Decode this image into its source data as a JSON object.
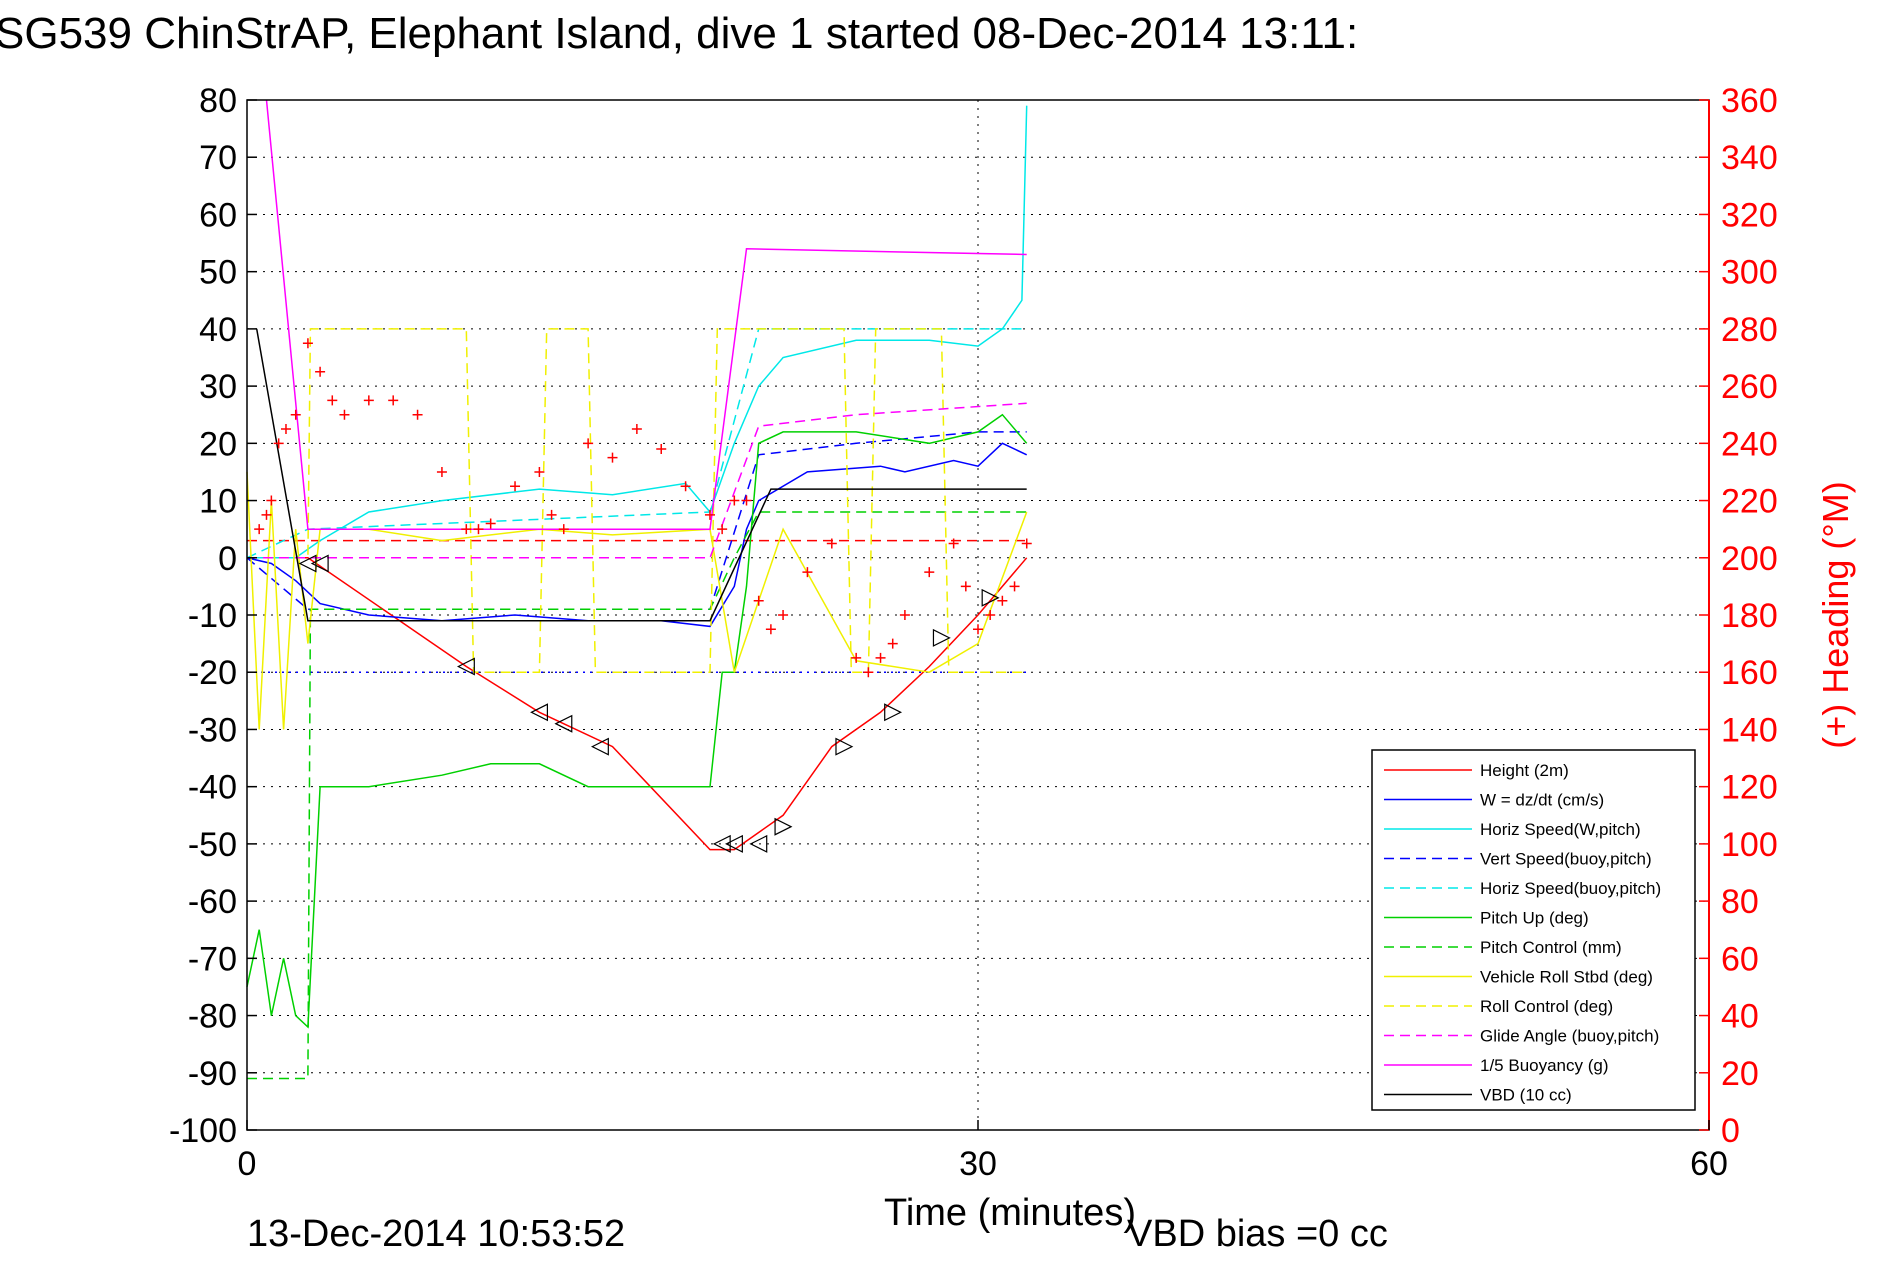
{
  "chart_data": {
    "type": "line",
    "title": "SG539 ChinStrAP, Elephant Island, dive 1 started 08-Dec-2014 13:11:",
    "xlabel": "Time (minutes)",
    "ylabel_right": "(+) Heading (°M)",
    "xlim": [
      0,
      60
    ],
    "ylim": [
      -100,
      80
    ],
    "ylim_right": [
      0,
      360
    ],
    "x_ticks": [
      "0",
      "30",
      "60"
    ],
    "y_ticks": [
      "80",
      "70",
      "60",
      "50",
      "40",
      "30",
      "20",
      "10",
      "0",
      "-10",
      "-20",
      "-30",
      "-40",
      "-50",
      "-60",
      "-70",
      "-80",
      "-90",
      "-100"
    ],
    "y_right_ticks": [
      "360",
      "340",
      "320",
      "300",
      "280",
      "260",
      "240",
      "220",
      "200",
      "180",
      "160",
      "140",
      "120",
      "100",
      "80",
      "60",
      "40",
      "20",
      "0"
    ],
    "grid": true,
    "legend_position": "bottom-right",
    "footer_date": "13-Dec-2014 10:53:52",
    "footer_note": "VBD bias =0 cc",
    "colors": {
      "red": "#ff0000",
      "blue": "#0000ff",
      "cyan": "#00e8e8",
      "green": "#00d000",
      "yellow": "#f0f000",
      "magenta": "#ff00ff",
      "black": "#000000"
    },
    "series": [
      {
        "name": "Height (2m)",
        "color": "#ff0000",
        "dash": "solid",
        "x": [
          0,
          2.5,
          9,
          12,
          15,
          19,
          20,
          22,
          24,
          26,
          28,
          30,
          32
        ],
        "y": [
          0,
          0,
          -19,
          -27,
          -33,
          -51,
          -51,
          -45,
          -33,
          -27,
          -19,
          -10,
          0
        ]
      },
      {
        "name": "W = dz/dt (cm/s)",
        "color": "#0000ff",
        "dash": "solid",
        "x": [
          0,
          1,
          2,
          3,
          5,
          8,
          11,
          14,
          17,
          19,
          20,
          20.5,
          21,
          23,
          26,
          27,
          29,
          30,
          31,
          32
        ],
        "y": [
          0,
          -1,
          -4,
          -8,
          -10,
          -11,
          -10,
          -11,
          -11,
          -12,
          -5,
          5,
          10,
          15,
          16,
          15,
          17,
          16,
          20,
          18
        ]
      },
      {
        "name": "Horiz Speed(W,pitch)",
        "color": "#00e8e8",
        "dash": "solid",
        "x": [
          0,
          2,
          3,
          5,
          8,
          12,
          15,
          18,
          19,
          20,
          21,
          22,
          25,
          28,
          30,
          31,
          31.8,
          32
        ],
        "y": [
          0,
          0,
          3,
          8,
          10,
          12,
          11,
          13,
          8,
          20,
          30,
          35,
          38,
          38,
          37,
          40,
          45,
          79
        ]
      },
      {
        "name": "Vert Speed(buoy,pitch)",
        "color": "#0000ff",
        "dash": "dashed",
        "x": [
          0,
          2.5,
          19,
          21,
          25,
          30,
          32
        ],
        "y": [
          0,
          -9,
          -9,
          18,
          20,
          22,
          22
        ]
      },
      {
        "name": "Horiz Speed(buoy,pitch)",
        "color": "#00e8e8",
        "dash": "dashed",
        "x": [
          0,
          2.5,
          19,
          21,
          25,
          30,
          32
        ],
        "y": [
          0,
          5,
          8,
          40,
          40,
          40,
          40
        ]
      },
      {
        "name": "Pitch Up (deg)",
        "color": "#00d000",
        "dash": "solid",
        "x": [
          0,
          0.5,
          1,
          1.5,
          2,
          2.5,
          3,
          5,
          8,
          10,
          12,
          14,
          16,
          19,
          19.5,
          20,
          20.5,
          21,
          22,
          25,
          28,
          30,
          31,
          32
        ],
        "y": [
          -75,
          -65,
          -80,
          -70,
          -80,
          -82,
          -40,
          -40,
          -38,
          -36,
          -36,
          -40,
          -40,
          -40,
          -20,
          -20,
          -5,
          20,
          22,
          22,
          20,
          22,
          25,
          20
        ]
      },
      {
        "name": "Pitch Control (mm)",
        "color": "#00d000",
        "dash": "dashed",
        "x": [
          0,
          2.5,
          2.6,
          19,
          20,
          21,
          32
        ],
        "y": [
          -91,
          -91,
          -9,
          -9,
          0,
          8,
          8
        ]
      },
      {
        "name": "Vehicle Roll Stbd (deg)",
        "color": "#f0f000",
        "dash": "solid",
        "x": [
          0,
          0.5,
          1,
          1.5,
          2,
          2.5,
          3,
          5,
          8,
          12,
          15,
          19,
          20,
          22,
          25,
          28,
          30,
          32
        ],
        "y": [
          15,
          -30,
          10,
          -30,
          5,
          -15,
          5,
          5,
          3,
          5,
          4,
          5,
          -20,
          5,
          -18,
          -20,
          -15,
          8
        ]
      },
      {
        "name": "Roll Control (deg)",
        "color": "#f0f000",
        "dash": "dashed",
        "x": [
          0,
          2.5,
          2.6,
          9,
          9.3,
          12,
          12.3,
          14,
          14.3,
          19,
          19.3,
          24.5,
          24.8,
          25.5,
          25.8,
          28.5,
          28.8,
          32
        ],
        "y": [
          0,
          0,
          40,
          40,
          -20,
          -20,
          40,
          40,
          -20,
          -20,
          40,
          40,
          -20,
          -20,
          40,
          40,
          -20,
          -20
        ]
      },
      {
        "name": "Glide Angle (buoy,pitch)",
        "color": "#ff00ff",
        "dash": "dashed",
        "x": [
          0,
          19,
          21,
          25,
          32
        ],
        "y": [
          0,
          0,
          23,
          25,
          27
        ]
      },
      {
        "name": "1/5 Buoyancy (g)",
        "color": "#ff00ff",
        "dash": "solid",
        "x": [
          0.8,
          2.5,
          19,
          20.5,
          32
        ],
        "y": [
          80,
          5,
          5,
          54,
          53
        ]
      },
      {
        "name": "VBD (10 cc)",
        "color": "#000000",
        "dash": "solid",
        "x": [
          0.4,
          2.5,
          19,
          21.5,
          32
        ],
        "y": [
          40,
          -11,
          -11,
          12,
          12
        ]
      }
    ],
    "heading_series": {
      "color": "#ff0000",
      "marker": "+",
      "axis": "right",
      "x": [
        0.5,
        0.8,
        1,
        1.3,
        1.6,
        2,
        2.5,
        3,
        3.5,
        4,
        5,
        6,
        7,
        8,
        9,
        9.5,
        10,
        11,
        12,
        12.5,
        13,
        14,
        15,
        16,
        17,
        18,
        19,
        19.5,
        20,
        20.5,
        21,
        21.5,
        22,
        23,
        24,
        25,
        25.5,
        26,
        26.5,
        27,
        28,
        29,
        29.5,
        30,
        30.5,
        31,
        31.5,
        32
      ],
      "y": [
        210,
        215,
        220,
        240,
        245,
        250,
        275,
        265,
        255,
        250,
        255,
        255,
        250,
        230,
        210,
        210,
        212,
        225,
        230,
        215,
        210,
        240,
        235,
        245,
        238,
        225,
        215,
        210,
        220,
        220,
        185,
        175,
        180,
        195,
        205,
        165,
        160,
        165,
        170,
        180,
        195,
        205,
        190,
        175,
        180,
        185,
        190,
        205
      ]
    },
    "markers": {
      "dive_triangles": {
        "x": [
          9,
          12,
          13,
          14.5,
          19.5,
          20,
          21
        ],
        "y": [
          -19,
          -27,
          -29,
          -33,
          -50,
          -50,
          -50
        ]
      },
      "climb_triangles": {
        "x": [
          22,
          24.5,
          26.5,
          28.5,
          30.5
        ],
        "y": [
          -47,
          -33,
          -27,
          -14,
          -7
        ]
      },
      "surface_triangles": {
        "x": [
          2.5,
          3
        ],
        "y": [
          -1,
          -1
        ]
      }
    },
    "reference_lines": [
      {
        "y": -20,
        "color": "#0000ff",
        "dash": "dotted",
        "x": [
          0,
          32
        ]
      },
      {
        "y": 3,
        "color": "#ff0000",
        "dash": "dashed",
        "x": [
          0,
          32
        ]
      },
      {
        "y": 0,
        "color": "#ff00ff",
        "dash": "dashed",
        "x": [
          0,
          19
        ]
      }
    ]
  }
}
